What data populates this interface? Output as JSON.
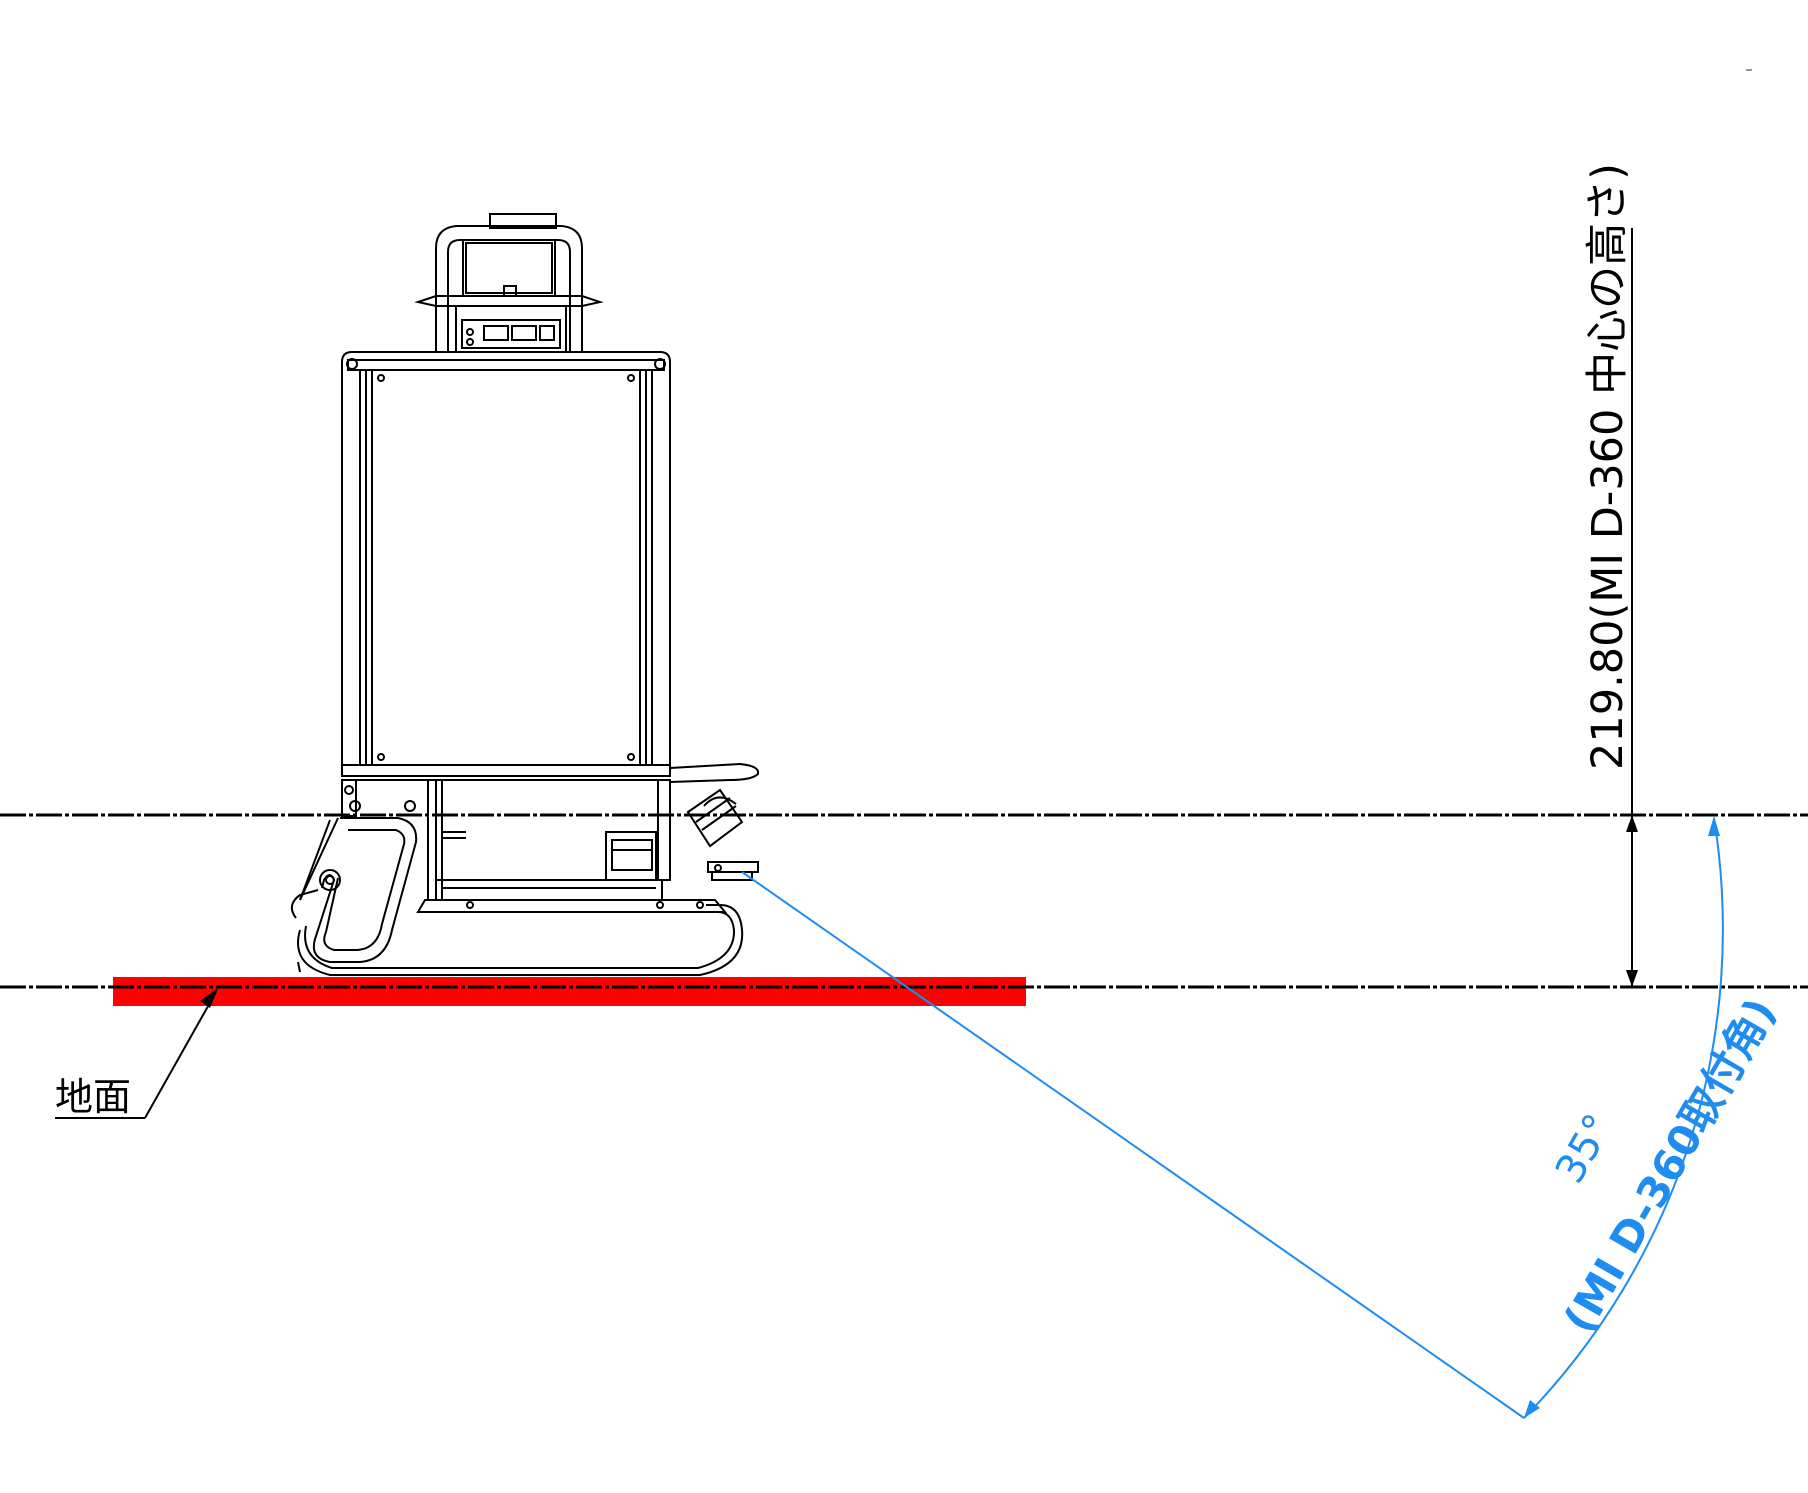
{
  "dimension": {
    "value_text": "219.80",
    "description": "(MI D-360 中心の高さ)"
  },
  "angle": {
    "value_text": "35°",
    "description": "(MI D-360取付角)"
  },
  "ground_label": "地面",
  "colors": {
    "ground_bar": "#ff0000",
    "angle_annotation": "#1e8cf0",
    "lines": "#000000"
  }
}
